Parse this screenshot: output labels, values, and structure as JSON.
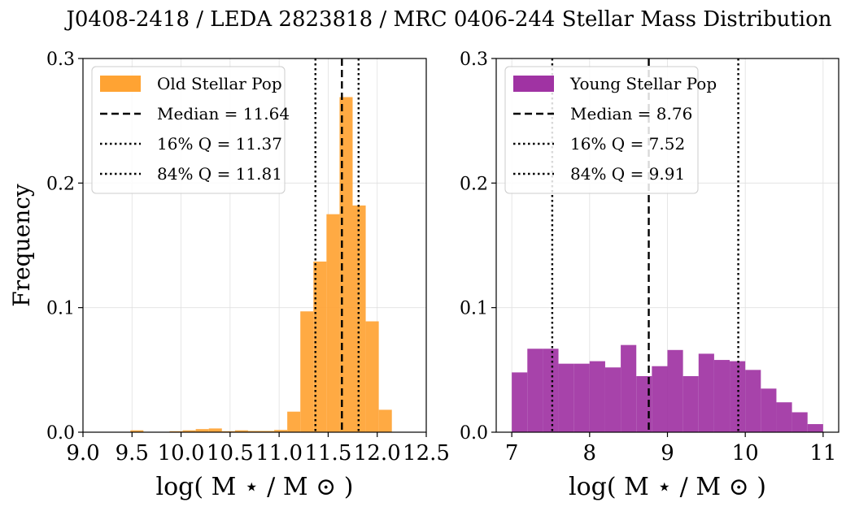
{
  "title": "J0408-2418 / LEDA 2823818 / MRC 0406-244 Stellar Mass Distribution",
  "chart_data": [
    {
      "type": "bar",
      "subtype": "histogram",
      "xlabel": "log( M ⋆ / M ⊙ )",
      "ylabel": "Frequency",
      "xlim": [
        9.0,
        12.5
      ],
      "ylim": [
        0.0,
        0.3
      ],
      "xticks": [
        9.0,
        9.5,
        10.0,
        10.5,
        11.0,
        11.5,
        12.0,
        12.5
      ],
      "xtick_labels": [
        "9.0",
        "9.5",
        "10.0",
        "10.5",
        "11.0",
        "11.5",
        "12.0",
        "12.5"
      ],
      "yticks": [
        0.0,
        0.1,
        0.2,
        0.3
      ],
      "ytick_labels": [
        "0.0",
        "0.1",
        "0.2",
        "0.3"
      ],
      "color": "#ffa333",
      "bin_start": 9.35,
      "bin_width": 0.1333,
      "values": [
        0.0,
        0.0015,
        0.0,
        0.0,
        0.0008,
        0.0015,
        0.0025,
        0.003,
        0.0008,
        0.0015,
        0.001,
        0.001,
        0.0018,
        0.0165,
        0.097,
        0.137,
        0.175,
        0.269,
        0.182,
        0.089,
        0.018
      ],
      "legend": {
        "location": "upper-left",
        "entries": [
          "Old Stellar Pop",
          "Median = 11.64",
          "16% Q = 11.37",
          "84% Q = 11.81"
        ]
      },
      "median": 11.64,
      "q16": 11.37,
      "q84": 11.81
    },
    {
      "type": "bar",
      "subtype": "histogram",
      "xlabel": "log( M ⋆ / M ⊙ )",
      "ylabel": "",
      "xlim": [
        6.8,
        11.2
      ],
      "ylim": [
        0.0,
        0.3
      ],
      "xticks": [
        7,
        8,
        9,
        10,
        11
      ],
      "xtick_labels": [
        "7",
        "8",
        "9",
        "10",
        "11"
      ],
      "yticks": [
        0.0,
        0.1,
        0.2,
        0.3
      ],
      "ytick_labels": [
        "0.0",
        "0.1",
        "0.2",
        "0.3"
      ],
      "color": "#a033a3",
      "bin_start": 7.0,
      "bin_width": 0.2,
      "values": [
        0.048,
        0.067,
        0.067,
        0.055,
        0.055,
        0.057,
        0.052,
        0.07,
        0.045,
        0.053,
        0.066,
        0.045,
        0.063,
        0.058,
        0.057,
        0.05,
        0.035,
        0.024,
        0.016,
        0.0065
      ],
      "legend": {
        "location": "upper-left",
        "entries": [
          "Young Stellar Pop",
          "Median = 8.76",
          "16% Q = 7.52",
          "84% Q = 9.91"
        ]
      },
      "median": 8.76,
      "q16": 7.52,
      "q84": 9.91
    }
  ]
}
